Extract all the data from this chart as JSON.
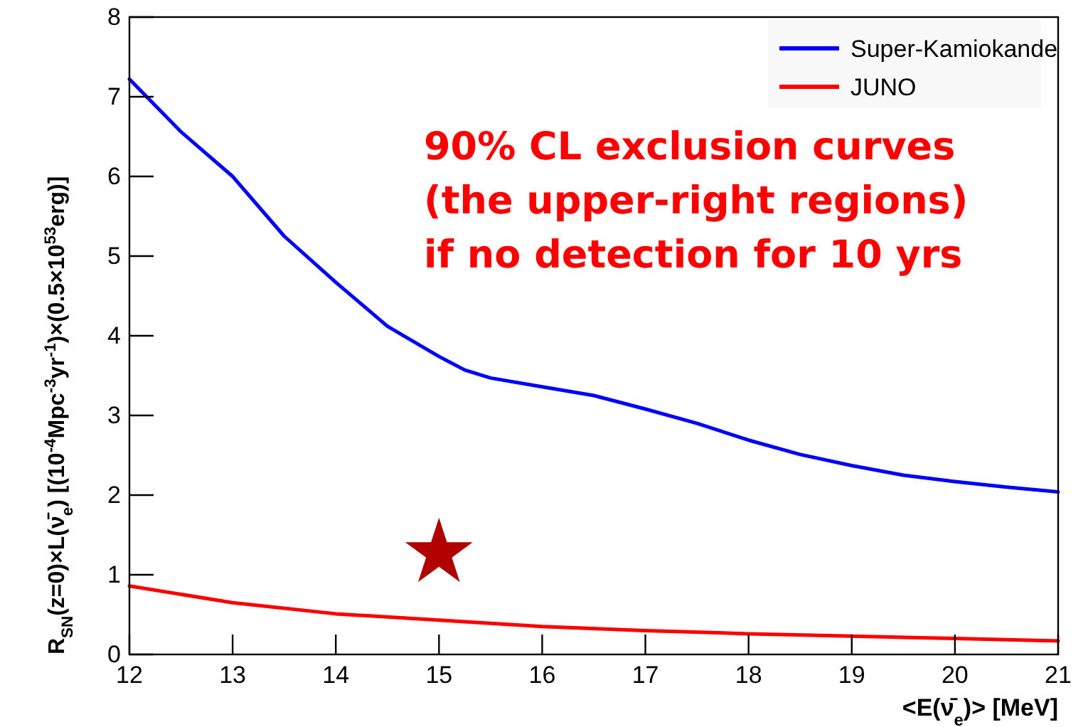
{
  "chart_data": {
    "type": "line",
    "xlabel": "<E(ν̄$_{e}$)> [MeV]",
    "ylabel": "R$_{SN}$(z=0)×L(ν̄$_{e}$) [(10$^{-4}$Mpc$^{-3}$yr$^{-1}$)×(0.5×10$^{53}$erg)]",
    "annotations": [
      "90% CL exclusion curves\n(the upper-right regions)\nif no detection for 10 yrs"
    ],
    "xlim": [
      12,
      21
    ],
    "ylim": [
      0,
      8
    ],
    "xticks": [
      12,
      13,
      14,
      15,
      16,
      17,
      18,
      19,
      20,
      21
    ],
    "yticks": [
      0,
      1,
      2,
      3,
      4,
      5,
      6,
      7,
      8
    ],
    "legend": "top right",
    "marker": "none",
    "line_style": "solid",
    "series": [
      {
        "name": "Super-Kamiokande",
        "color": "#0000ff",
        "x": [
          12,
          12.5,
          13,
          13.5,
          14,
          14.5,
          15,
          15.25,
          15.5,
          16,
          16.5,
          17,
          17.5,
          18,
          18.5,
          19,
          19.5,
          20,
          20.5,
          21
        ],
        "values": [
          7.22,
          6.56,
          6.0,
          5.25,
          4.67,
          4.12,
          3.74,
          3.57,
          3.47,
          3.36,
          3.25,
          3.08,
          2.9,
          2.69,
          2.51,
          2.37,
          2.25,
          2.17,
          2.1,
          2.04
        ]
      },
      {
        "name": "JUNO",
        "color": "#ff0000",
        "x": [
          12,
          13,
          14,
          15,
          16,
          17,
          18,
          19,
          20,
          21
        ],
        "values": [
          0.86,
          0.65,
          0.51,
          0.43,
          0.35,
          0.3,
          0.26,
          0.23,
          0.2,
          0.17
        ]
      },
      {
        "type": "scatter",
        "marker": "star",
        "color": "#b00000",
        "x": [
          15
        ],
        "values": [
          1.27
        ]
      }
    ]
  }
}
